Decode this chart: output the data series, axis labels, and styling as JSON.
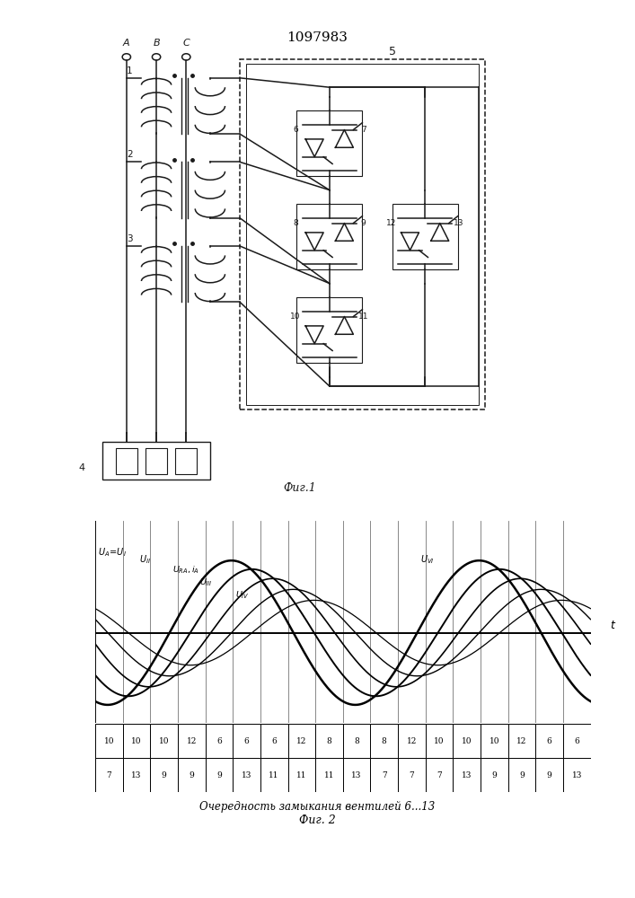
{
  "title": "1097983",
  "fig1_caption": "Фиг.1",
  "fig2_caption": "Фиг. 2",
  "table_row1": [
    "10",
    "10",
    "10",
    "12",
    "6",
    "6",
    "6",
    "12",
    "8",
    "8",
    "8",
    "12",
    "10",
    "10",
    "10",
    "12",
    "6",
    "6"
  ],
  "table_row2": [
    "7",
    "13",
    "9",
    "9",
    "9",
    "13",
    "11",
    "11",
    "11",
    "13",
    "7",
    "7",
    "7",
    "13",
    "9",
    "9",
    "9",
    "13"
  ],
  "sequence_label": "Очередность замыкания вентилей 6...13",
  "t_label": "t",
  "line_color": "#1a1a1a"
}
